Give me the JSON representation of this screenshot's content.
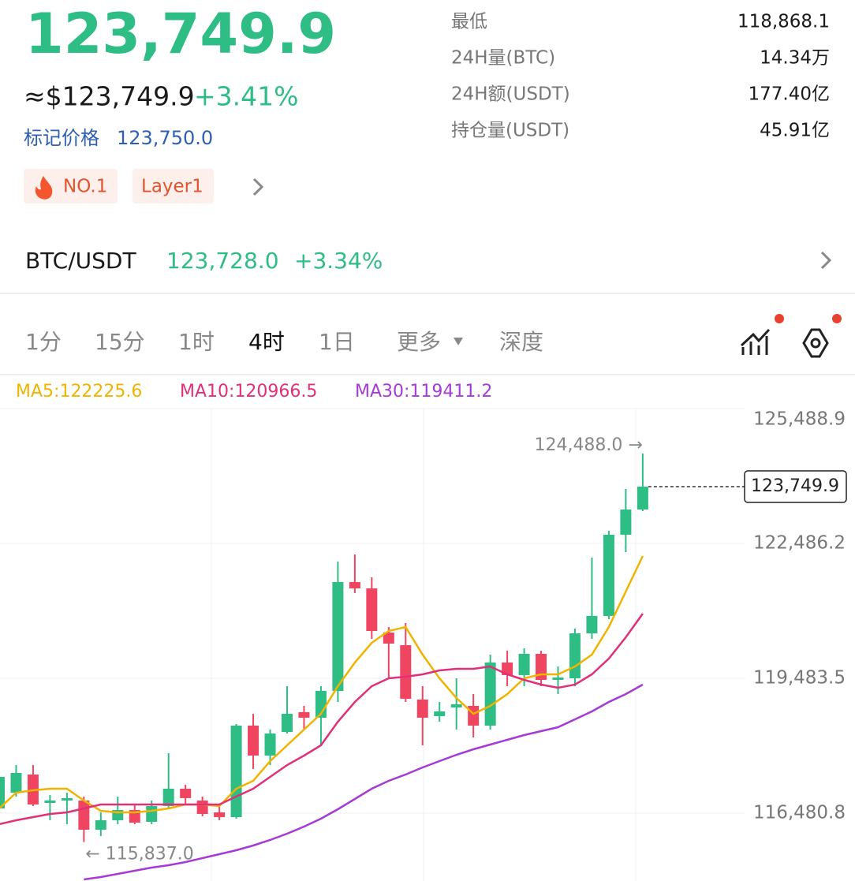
{
  "header": {
    "price": "123,749.9",
    "usd_price": "≈$123,749.9",
    "change": "+3.41%",
    "mark_label": "标记价格",
    "mark_price": "123,750.0",
    "tags": [
      "NO.1",
      "Layer1"
    ]
  },
  "stats": [
    {
      "label": "最低",
      "value": "118,868.1"
    },
    {
      "label": "24H量(BTC)",
      "value": "14.34万"
    },
    {
      "label": "24H额(USDT)",
      "value": "177.40亿"
    },
    {
      "label": "持仓量(USDT)",
      "value": "45.91亿"
    }
  ],
  "pair": {
    "name": "BTC/USDT",
    "price": "123,728.0",
    "change": "+3.34%"
  },
  "tabs": [
    "1分",
    "15分",
    "1时",
    "4时",
    "1日",
    "更多",
    "深度"
  ],
  "active_tab": 3,
  "chart_data": {
    "type": "candlestick",
    "up_color": "#2ebd85",
    "down_color": "#ef4560",
    "ylim": [
      114970,
      125489
    ],
    "yticks": [
      {
        "value": 125488.9,
        "label": "125,488.9"
      },
      {
        "value": 122486.2,
        "label": "122,486.2"
      },
      {
        "value": 119483.5,
        "label": "119,483.5"
      },
      {
        "value": 116480.8,
        "label": "116,480.8"
      }
    ],
    "grid": true,
    "open": [
      116586,
      116937,
      117341,
      116709,
      116762,
      116762,
      116112,
      116323,
      116551,
      116288,
      116639,
      117025,
      116762,
      116498,
      116393,
      118430,
      117763,
      118289,
      118729,
      118606,
      119202,
      121626,
      121485,
      120502,
      120221,
      119010,
      118641,
      118834,
      118869,
      118430,
      119835,
      119554,
      120028,
      119448,
      119483,
      120484,
      120871,
      122680,
      123241
    ],
    "close": [
      117288,
      117376,
      116674,
      116762,
      116815,
      116112,
      116323,
      116551,
      116270,
      116639,
      117025,
      116815,
      116463,
      116393,
      118430,
      117763,
      118254,
      118693,
      118606,
      119202,
      121626,
      121485,
      120537,
      120256,
      119027,
      118606,
      118746,
      118904,
      118430,
      119835,
      119554,
      120028,
      119448,
      119501,
      120484,
      120871,
      122680,
      123241,
      123749.9
    ],
    "high": [
      117464,
      117552,
      117552,
      116885,
      116937,
      116850,
      116498,
      116850,
      116674,
      116762,
      117815,
      117113,
      116850,
      116674,
      118465,
      118693,
      118342,
      119308,
      118869,
      119308,
      122082,
      122240,
      121731,
      120625,
      120713,
      119308,
      118957,
      119483,
      119132,
      120010,
      120098,
      120151,
      120098,
      119747,
      120590,
      122170,
      122767,
      123698,
      124488
    ],
    "low": [
      116498,
      116850,
      116639,
      116323,
      116235,
      115837,
      115972,
      116235,
      116235,
      116235,
      116586,
      116674,
      116410,
      116323,
      116358,
      117464,
      117552,
      118254,
      118342,
      117991,
      118957,
      121380,
      120361,
      119483,
      118957,
      117991,
      118518,
      118342,
      118166,
      118342,
      119308,
      119308,
      119308,
      119132,
      119308,
      120361,
      120800,
      122293,
      123206
    ],
    "series": [
      {
        "name": "MA5:122225.6",
        "color": "#f0b400",
        "values": [
          116586,
          116937,
          116990,
          117025,
          117025,
          116762,
          116533,
          116498,
          116498,
          116533,
          116586,
          116674,
          116674,
          116639,
          117025,
          117201,
          117640,
          117991,
          118342,
          118693,
          119308,
          119835,
          120274,
          120537,
          120625,
          120010,
          119483,
          119044,
          118693,
          118869,
          119132,
          119483,
          119571,
          119571,
          119747,
          120010,
          120625,
          121415,
          122205
        ]
      },
      {
        "name": "MA10:120966.5",
        "color": "#e0307a",
        "values": [
          116235,
          116323,
          116393,
          116463,
          116498,
          116586,
          116674,
          116674,
          116674,
          116674,
          116674,
          116674,
          116674,
          116674,
          116850,
          117025,
          117288,
          117552,
          117763,
          117991,
          118518,
          118957,
          119308,
          119483,
          119519,
          119571,
          119659,
          119694,
          119694,
          119747,
          119571,
          119448,
          119343,
          119273,
          119343,
          119571,
          119922,
          120396,
          120923
        ]
      },
      {
        "name": "MA30:119411.2",
        "color": "#a53ad6",
        "values": [
          null,
          null,
          null,
          null,
          null,
          115005,
          115058,
          115128,
          115198,
          115269,
          115321,
          115391,
          115479,
          115567,
          115655,
          115761,
          115884,
          116024,
          116182,
          116358,
          116568,
          116796,
          117025,
          117201,
          117341,
          117499,
          117640,
          117780,
          117903,
          118008,
          118114,
          118219,
          118307,
          118395,
          118570,
          118746,
          118957,
          119132,
          119343
        ]
      }
    ],
    "high_label": "124,488.0 →",
    "low_label": "← 115,837.0",
    "last_label": "123,749.9"
  }
}
